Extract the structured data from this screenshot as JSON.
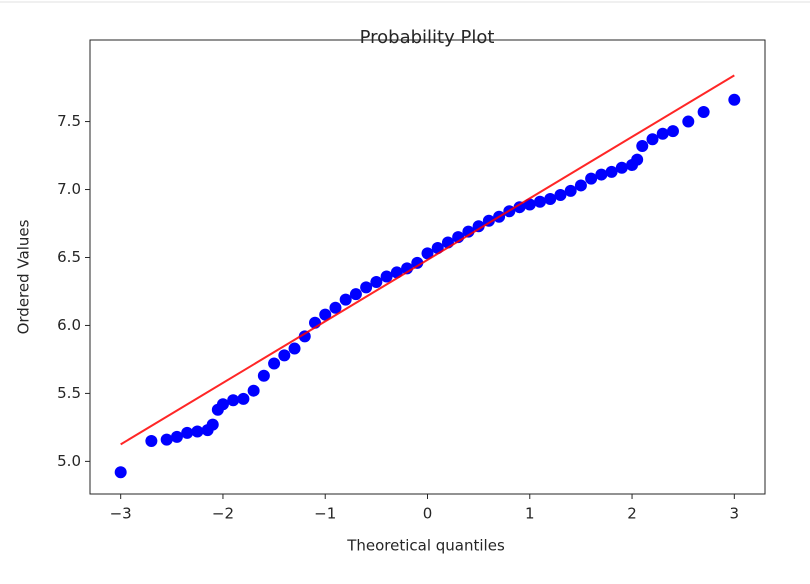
{
  "chart_data": {
    "type": "scatter",
    "title": "Probability Plot",
    "x_label": "Theoretical quantiles",
    "y_label": "Ordered Values",
    "x": [
      -3,
      -2.7,
      -2.55,
      -2.45,
      -2.35,
      -2.25,
      -2.15,
      -2.1,
      -2.05,
      -2.0,
      -1.9,
      -1.8,
      -1.7,
      -1.6,
      -1.5,
      -1.4,
      -1.3,
      -1.2,
      -1.1,
      -1.0,
      -0.9,
      -0.8,
      -0.7,
      -0.6,
      -0.5,
      -0.4,
      -0.3,
      -0.2,
      -0.1,
      0,
      0.1,
      0.2,
      0.3,
      0.4,
      0.5,
      0.6,
      0.7,
      0.8,
      0.9,
      1.0,
      1.1,
      1.2,
      1.3,
      1.4,
      1.5,
      1.6,
      1.7,
      1.8,
      1.9,
      2.0,
      2.05,
      2.1,
      2.2,
      2.3,
      2.4,
      2.55,
      2.7,
      3.0
    ],
    "series": [
      {
        "color": "#0000ff",
        "values": [
          4.92,
          5.15,
          5.16,
          5.18,
          5.21,
          5.22,
          5.23,
          5.27,
          5.38,
          5.42,
          5.45,
          5.46,
          5.52,
          5.63,
          5.72,
          5.78,
          5.83,
          5.92,
          6.02,
          6.08,
          6.13,
          6.19,
          6.23,
          6.28,
          6.32,
          6.36,
          6.39,
          6.42,
          6.46,
          6.53,
          6.57,
          6.61,
          6.65,
          6.69,
          6.73,
          6.77,
          6.8,
          6.84,
          6.87,
          6.89,
          6.91,
          6.93,
          6.96,
          6.99,
          7.03,
          7.08,
          7.11,
          7.13,
          7.16,
          7.18,
          7.22,
          7.32,
          7.37,
          7.41,
          7.43,
          7.5,
          7.57,
          7.66
        ]
      }
    ],
    "fit_line": {
      "color": "#ff0000",
      "x": [
        -3,
        3
      ],
      "values": [
        5.125,
        7.84
      ]
    },
    "xlim": [
      -3.3,
      3.3
    ],
    "ylim": [
      4.76,
      8.1
    ],
    "xticks": [
      {
        "value": -3,
        "label": "−3"
      },
      {
        "value": -2,
        "label": "−2"
      },
      {
        "value": -1,
        "label": "−1"
      },
      0,
      1,
      2,
      3
    ],
    "yticks": [
      {
        "value": 5,
        "label": "5.0"
      },
      5.5,
      {
        "value": 6,
        "label": "6.0"
      },
      6.5,
      {
        "value": 7,
        "label": "7.0"
      },
      7.5
    ],
    "grid": false
  }
}
